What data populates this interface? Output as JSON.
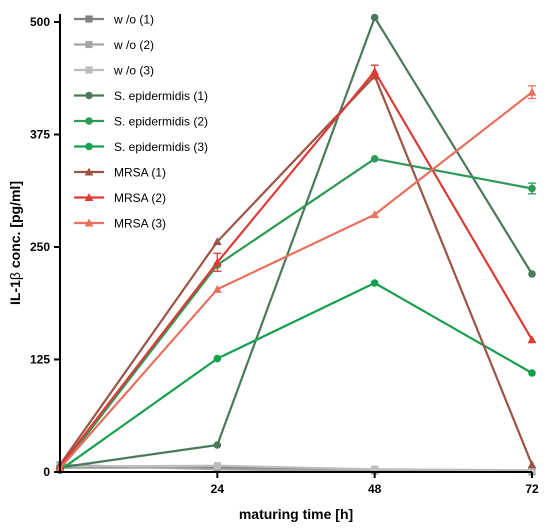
{
  "chart_data": {
    "type": "line",
    "title": "",
    "xlabel": "maturing time [h]",
    "ylabel_prefix": "IL-1",
    "ylabel_greek": "β",
    "ylabel_suffix": " conc. [pg/ml]",
    "xlim": [
      0,
      72
    ],
    "ylim": [
      0,
      500
    ],
    "x_ticks": [
      24,
      48,
      72
    ],
    "y_ticks": [
      0,
      125,
      250,
      375,
      500
    ],
    "grid": false,
    "legend_position": "top-left",
    "x": [
      0,
      24,
      48,
      72
    ],
    "series": [
      {
        "name": "w /o (1)",
        "color": "#808080",
        "marker": "square",
        "values": [
          5,
          5,
          2,
          1
        ]
      },
      {
        "name": "w /o (2)",
        "color": "#a6a6a6",
        "marker": "square",
        "values": [
          8,
          3,
          1,
          0
        ]
      },
      {
        "name": "w /o (3)",
        "color": "#bdbdbd",
        "marker": "square",
        "values": [
          6,
          7,
          3,
          2
        ]
      },
      {
        "name": "S. epidermidis (1)",
        "color": "#4a7a5b",
        "marker": "circle",
        "values": [
          5,
          30,
          505,
          220
        ]
      },
      {
        "name": "S. epidermidis (2)",
        "color": "#2e9a55",
        "marker": "circle",
        "values": [
          3,
          230,
          348,
          315
        ],
        "errors": [
          0,
          0,
          0,
          6
        ]
      },
      {
        "name": "S. epidermidis (3)",
        "color": "#14a04c",
        "marker": "circle",
        "values": [
          2,
          126,
          210,
          110
        ]
      },
      {
        "name": "MRSA (1)",
        "color": "#9b5445",
        "marker": "triangle",
        "values": [
          8,
          256,
          440,
          8
        ]
      },
      {
        "name": "MRSA (2)",
        "color": "#dc3b36",
        "marker": "triangle",
        "values": [
          6,
          233,
          445,
          147
        ],
        "errors": [
          0,
          10,
          7,
          0
        ]
      },
      {
        "name": "MRSA (3)",
        "color": "#e8705f",
        "marker": "triangle",
        "values": [
          4,
          203,
          286,
          422
        ],
        "errors": [
          0,
          0,
          0,
          7
        ]
      }
    ]
  }
}
